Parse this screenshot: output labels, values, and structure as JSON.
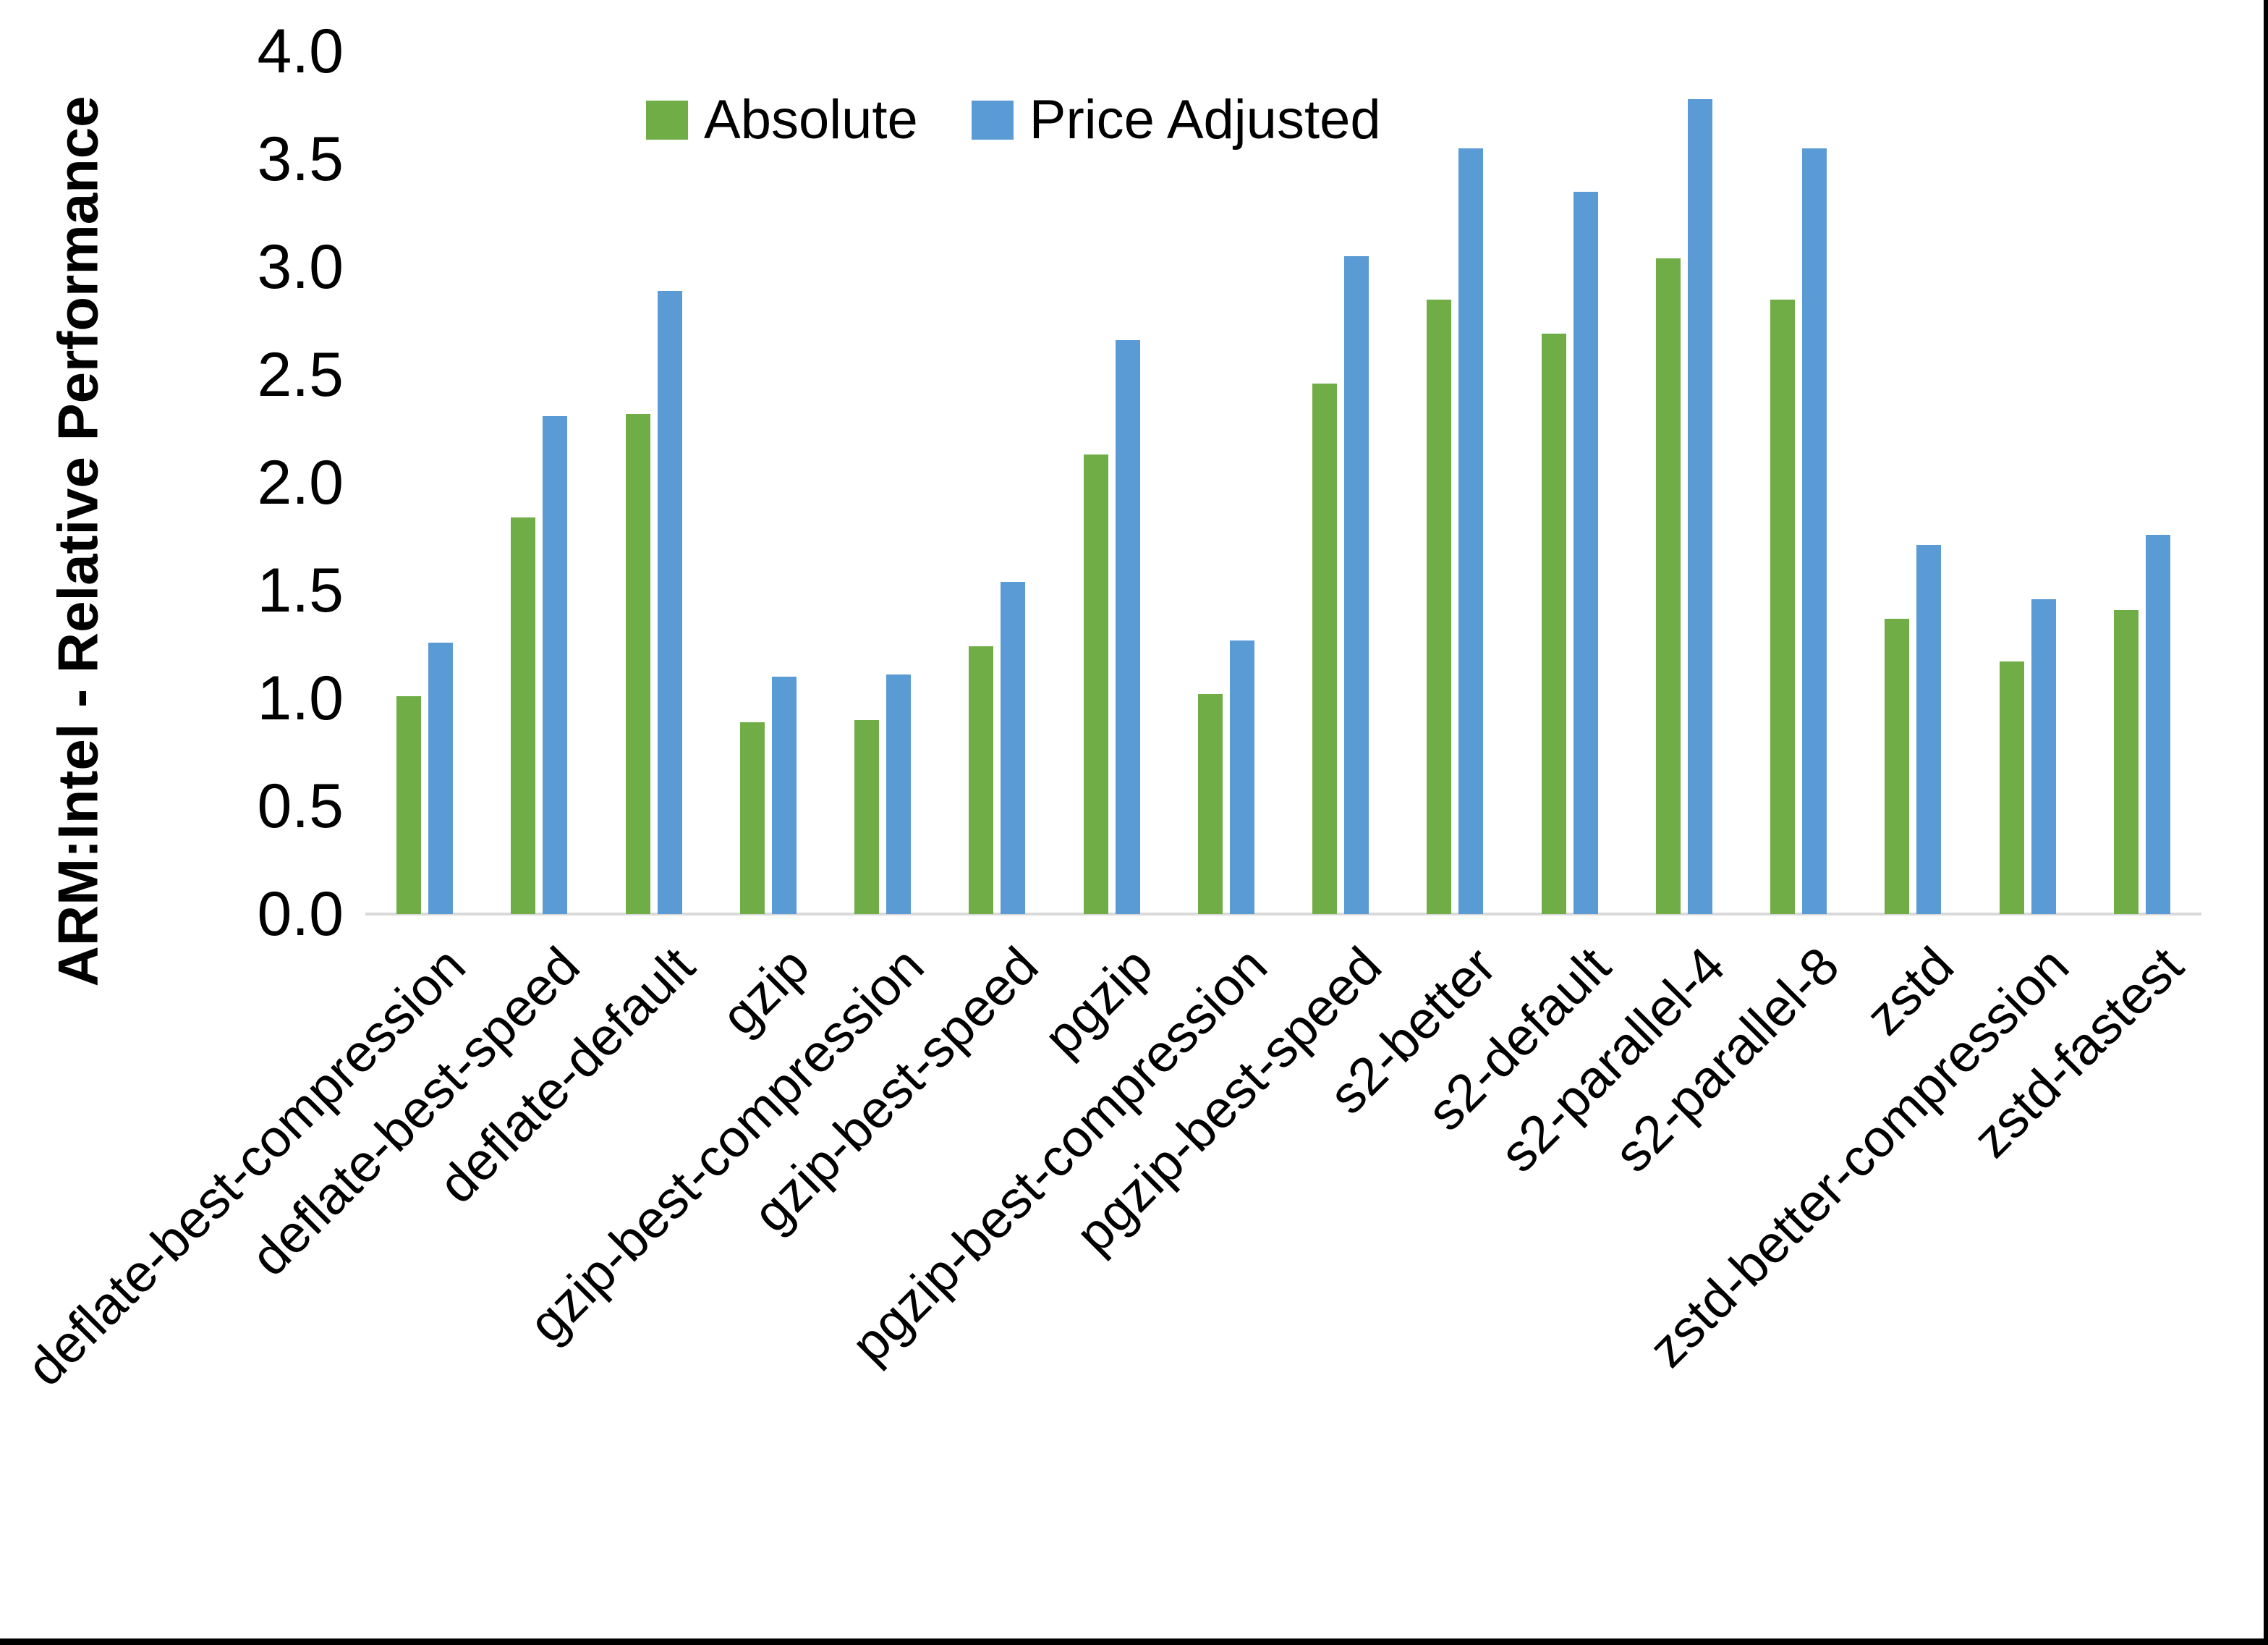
{
  "chart_data": {
    "type": "bar",
    "title": "",
    "xlabel": "",
    "ylabel": "ARM:Intel - Relative Performance",
    "ylim": [
      0.0,
      4.0
    ],
    "ytick_step": 0.5,
    "ytick_labels": [
      "0.0",
      "0.5",
      "1.0",
      "1.5",
      "2.0",
      "2.5",
      "3.0",
      "3.5",
      "4.0"
    ],
    "grid": false,
    "legend_position": "top-center",
    "categories": [
      "deflate-best-compression",
      "deflate-best-speed",
      "deflate-default",
      "gzip",
      "gzip-best-compression",
      "gzip-best-speed",
      "pgzip",
      "pgzip-best-compression",
      "pgzip-best-speed",
      "s2-better",
      "s2-default",
      "s2-parallel-4",
      "s2-parallel-8",
      "zstd",
      "zstd-better-compression",
      "zstd-fastest"
    ],
    "series": [
      {
        "name": "Absolute",
        "color": "#70AD47",
        "values": [
          1.01,
          1.84,
          2.32,
          0.89,
          0.9,
          1.24,
          2.13,
          1.02,
          2.46,
          2.85,
          2.69,
          3.04,
          2.85,
          1.37,
          1.17,
          1.41
        ]
      },
      {
        "name": "Price Adjusted",
        "color": "#5B9BD5",
        "values": [
          1.26,
          2.31,
          2.89,
          1.1,
          1.11,
          1.54,
          2.66,
          1.27,
          3.05,
          3.55,
          3.35,
          3.78,
          3.55,
          1.71,
          1.46,
          1.76
        ]
      }
    ]
  },
  "colors": {
    "background": "#FFFFFF",
    "axis_line": "#D9D9D9",
    "text": "#000000",
    "page_border": "#000000"
  }
}
